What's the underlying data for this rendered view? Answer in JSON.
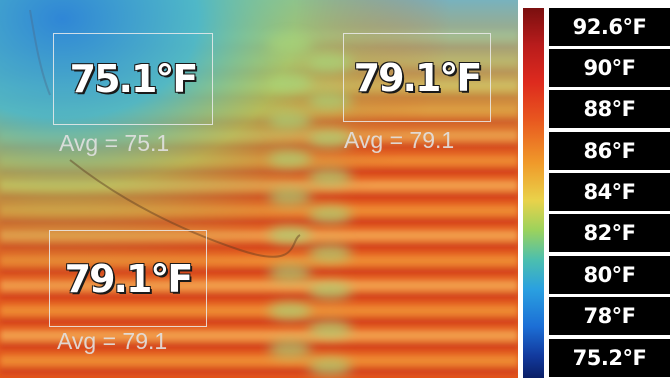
{
  "regions": [
    {
      "temperature": "75.1°F",
      "average": "Avg = 75.1"
    },
    {
      "temperature": "79.1°F",
      "average": "Avg = 79.1"
    },
    {
      "temperature": "79.1°F",
      "average": "Avg = 79.1"
    }
  ],
  "scale": {
    "labels": [
      "92.6°F",
      "90°F",
      "88°F",
      "86°F",
      "84°F",
      "82°F",
      "80°F",
      "78°F",
      "75.2°F"
    ]
  }
}
